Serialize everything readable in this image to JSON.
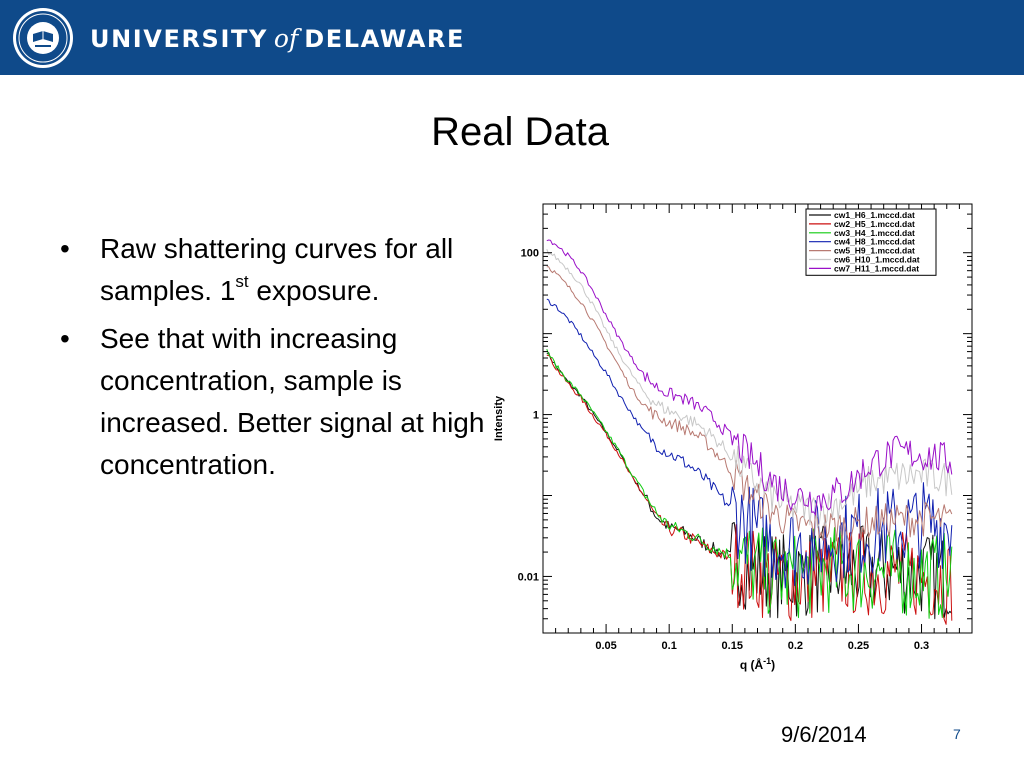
{
  "header": {
    "university_left": "UNIVERSITY",
    "university_of": "of",
    "university_right": "DELAWARE",
    "bar_color": "#0f4a8a",
    "seal_icon": "university-seal-icon"
  },
  "slide": {
    "title": "Real Data",
    "bullets": [
      {
        "text": "Raw shattering curves for all samples. 1",
        "sup": "st",
        "tail": " exposure."
      },
      {
        "text": "See that with increasing concentration, sample is increased.  Better signal at high concentration."
      }
    ],
    "date": "9/6/2014",
    "page": "7"
  },
  "chart_data": {
    "type": "line",
    "xlabel": "q (Å",
    "xlabel_sup": "-1",
    "xlabel_tail": ")",
    "ylabel": "Intensity",
    "log_y": true,
    "xlim": [
      0.0,
      0.34
    ],
    "ylim": [
      0.002,
      400
    ],
    "x_ticks": [
      0.05,
      0.1,
      0.15,
      0.2,
      0.25,
      0.3
    ],
    "x_tick_labels": [
      "0.05",
      "0.1",
      "0.15",
      "0.2",
      "0.25",
      "0.3"
    ],
    "y_ticks": [
      100,
      1,
      0.01
    ],
    "y_tick_labels": [
      "100",
      "1",
      "0.01"
    ],
    "grid": false,
    "legend_position": "top-right",
    "series": [
      {
        "name": "cw1_H6_1.mccd.dat",
        "color": "#111111",
        "x": [
          0.003,
          0.01,
          0.02,
          0.03,
          0.04,
          0.05,
          0.06,
          0.07,
          0.08,
          0.09,
          0.1,
          0.11,
          0.12,
          0.13,
          0.14,
          0.15,
          0.16,
          0.17,
          0.18,
          0.19,
          0.2,
          0.22,
          0.24,
          0.26,
          0.28,
          0.3,
          0.31,
          0.32,
          0.325
        ],
        "y": [
          6,
          4,
          2.5,
          1.7,
          1.0,
          0.6,
          0.35,
          0.18,
          0.1,
          0.055,
          0.04,
          0.036,
          0.03,
          0.024,
          0.02,
          0.017,
          0.014,
          0.012,
          0.011,
          0.01,
          0.01,
          0.012,
          0.012,
          0.012,
          0.012,
          0.011,
          0.01,
          0.01,
          0.01
        ]
      },
      {
        "name": "cw2_H5_1.mccd.dat",
        "color": "#cc1010",
        "x": [
          0.003,
          0.01,
          0.02,
          0.03,
          0.04,
          0.05,
          0.06,
          0.07,
          0.08,
          0.09,
          0.1,
          0.11,
          0.12,
          0.13,
          0.14,
          0.15,
          0.16,
          0.17,
          0.18,
          0.19,
          0.2,
          0.22,
          0.24,
          0.26,
          0.28,
          0.3,
          0.31,
          0.32,
          0.325
        ],
        "y": [
          5.8,
          3.8,
          2.4,
          1.6,
          0.95,
          0.58,
          0.33,
          0.17,
          0.1,
          0.052,
          0.038,
          0.034,
          0.028,
          0.022,
          0.019,
          0.016,
          0.013,
          0.011,
          0.01,
          0.009,
          0.009,
          0.01,
          0.011,
          0.011,
          0.011,
          0.01,
          0.01,
          0.009,
          0.009
        ]
      },
      {
        "name": "cw3_H4_1.mccd.dat",
        "color": "#10cc10",
        "x": [
          0.003,
          0.01,
          0.02,
          0.03,
          0.04,
          0.05,
          0.06,
          0.07,
          0.08,
          0.09,
          0.1,
          0.11,
          0.12,
          0.13,
          0.14,
          0.15,
          0.16,
          0.17,
          0.18,
          0.19,
          0.2,
          0.22,
          0.24,
          0.26,
          0.28,
          0.3,
          0.31,
          0.32,
          0.325
        ],
        "y": [
          6.2,
          4.1,
          2.6,
          1.75,
          1.05,
          0.62,
          0.36,
          0.19,
          0.11,
          0.06,
          0.042,
          0.037,
          0.031,
          0.025,
          0.021,
          0.018,
          0.015,
          0.013,
          0.011,
          0.01,
          0.01,
          0.012,
          0.012,
          0.012,
          0.011,
          0.011,
          0.01,
          0.01,
          0.01
        ]
      },
      {
        "name": "cw4_H8_1.mccd.dat",
        "color": "#1020b0",
        "x": [
          0.003,
          0.01,
          0.02,
          0.03,
          0.04,
          0.05,
          0.06,
          0.07,
          0.08,
          0.09,
          0.1,
          0.11,
          0.12,
          0.13,
          0.14,
          0.15,
          0.16,
          0.17,
          0.18,
          0.19,
          0.2,
          0.22,
          0.24,
          0.26,
          0.28,
          0.3,
          0.31,
          0.32,
          0.325
        ],
        "y": [
          26,
          22,
          15,
          9.5,
          5.5,
          3.3,
          1.8,
          1.05,
          0.6,
          0.42,
          0.33,
          0.27,
          0.21,
          0.15,
          0.1,
          0.068,
          0.048,
          0.035,
          0.028,
          0.025,
          0.024,
          0.027,
          0.032,
          0.036,
          0.04,
          0.045,
          0.045,
          0.044,
          0.043
        ]
      },
      {
        "name": "cw5_H9_1.mccd.dat",
        "color": "#b87a72",
        "x": [
          0.003,
          0.01,
          0.02,
          0.03,
          0.04,
          0.05,
          0.06,
          0.07,
          0.08,
          0.09,
          0.1,
          0.11,
          0.12,
          0.13,
          0.14,
          0.15,
          0.16,
          0.17,
          0.18,
          0.19,
          0.2,
          0.22,
          0.24,
          0.26,
          0.28,
          0.3,
          0.31,
          0.32,
          0.325
        ],
        "y": [
          70,
          56,
          38,
          25,
          14,
          7.5,
          4.0,
          2.1,
          1.3,
          0.95,
          0.8,
          0.7,
          0.58,
          0.44,
          0.3,
          0.2,
          0.13,
          0.09,
          0.066,
          0.052,
          0.044,
          0.04,
          0.042,
          0.046,
          0.05,
          0.052,
          0.05,
          0.049,
          0.048
        ]
      },
      {
        "name": "cw6_H10_1.mccd.dat",
        "color": "#c8c8c8",
        "x": [
          0.003,
          0.01,
          0.02,
          0.03,
          0.04,
          0.05,
          0.06,
          0.07,
          0.08,
          0.09,
          0.1,
          0.11,
          0.12,
          0.13,
          0.14,
          0.15,
          0.16,
          0.17,
          0.18,
          0.19,
          0.2,
          0.22,
          0.24,
          0.26,
          0.28,
          0.3,
          0.31,
          0.32,
          0.325
        ],
        "y": [
          105,
          88,
          62,
          40,
          22,
          11,
          5.8,
          3.2,
          1.9,
          1.35,
          1.1,
          0.96,
          0.8,
          0.62,
          0.44,
          0.3,
          0.2,
          0.14,
          0.1,
          0.08,
          0.07,
          0.065,
          0.09,
          0.15,
          0.17,
          0.18,
          0.17,
          0.16,
          0.16
        ]
      },
      {
        "name": "cw7_H11_1.mccd.dat",
        "color": "#9a10c8",
        "x": [
          0.003,
          0.01,
          0.02,
          0.03,
          0.04,
          0.05,
          0.06,
          0.07,
          0.08,
          0.09,
          0.1,
          0.11,
          0.12,
          0.13,
          0.14,
          0.15,
          0.16,
          0.17,
          0.18,
          0.19,
          0.2,
          0.22,
          0.24,
          0.26,
          0.28,
          0.3,
          0.31,
          0.32,
          0.325
        ],
        "y": [
          150,
          128,
          92,
          60,
          33,
          17,
          9.0,
          5.0,
          3.1,
          2.2,
          1.8,
          1.6,
          1.35,
          1.05,
          0.75,
          0.5,
          0.34,
          0.23,
          0.16,
          0.12,
          0.1,
          0.09,
          0.12,
          0.25,
          0.34,
          0.32,
          0.3,
          0.27,
          0.26
        ]
      }
    ]
  }
}
